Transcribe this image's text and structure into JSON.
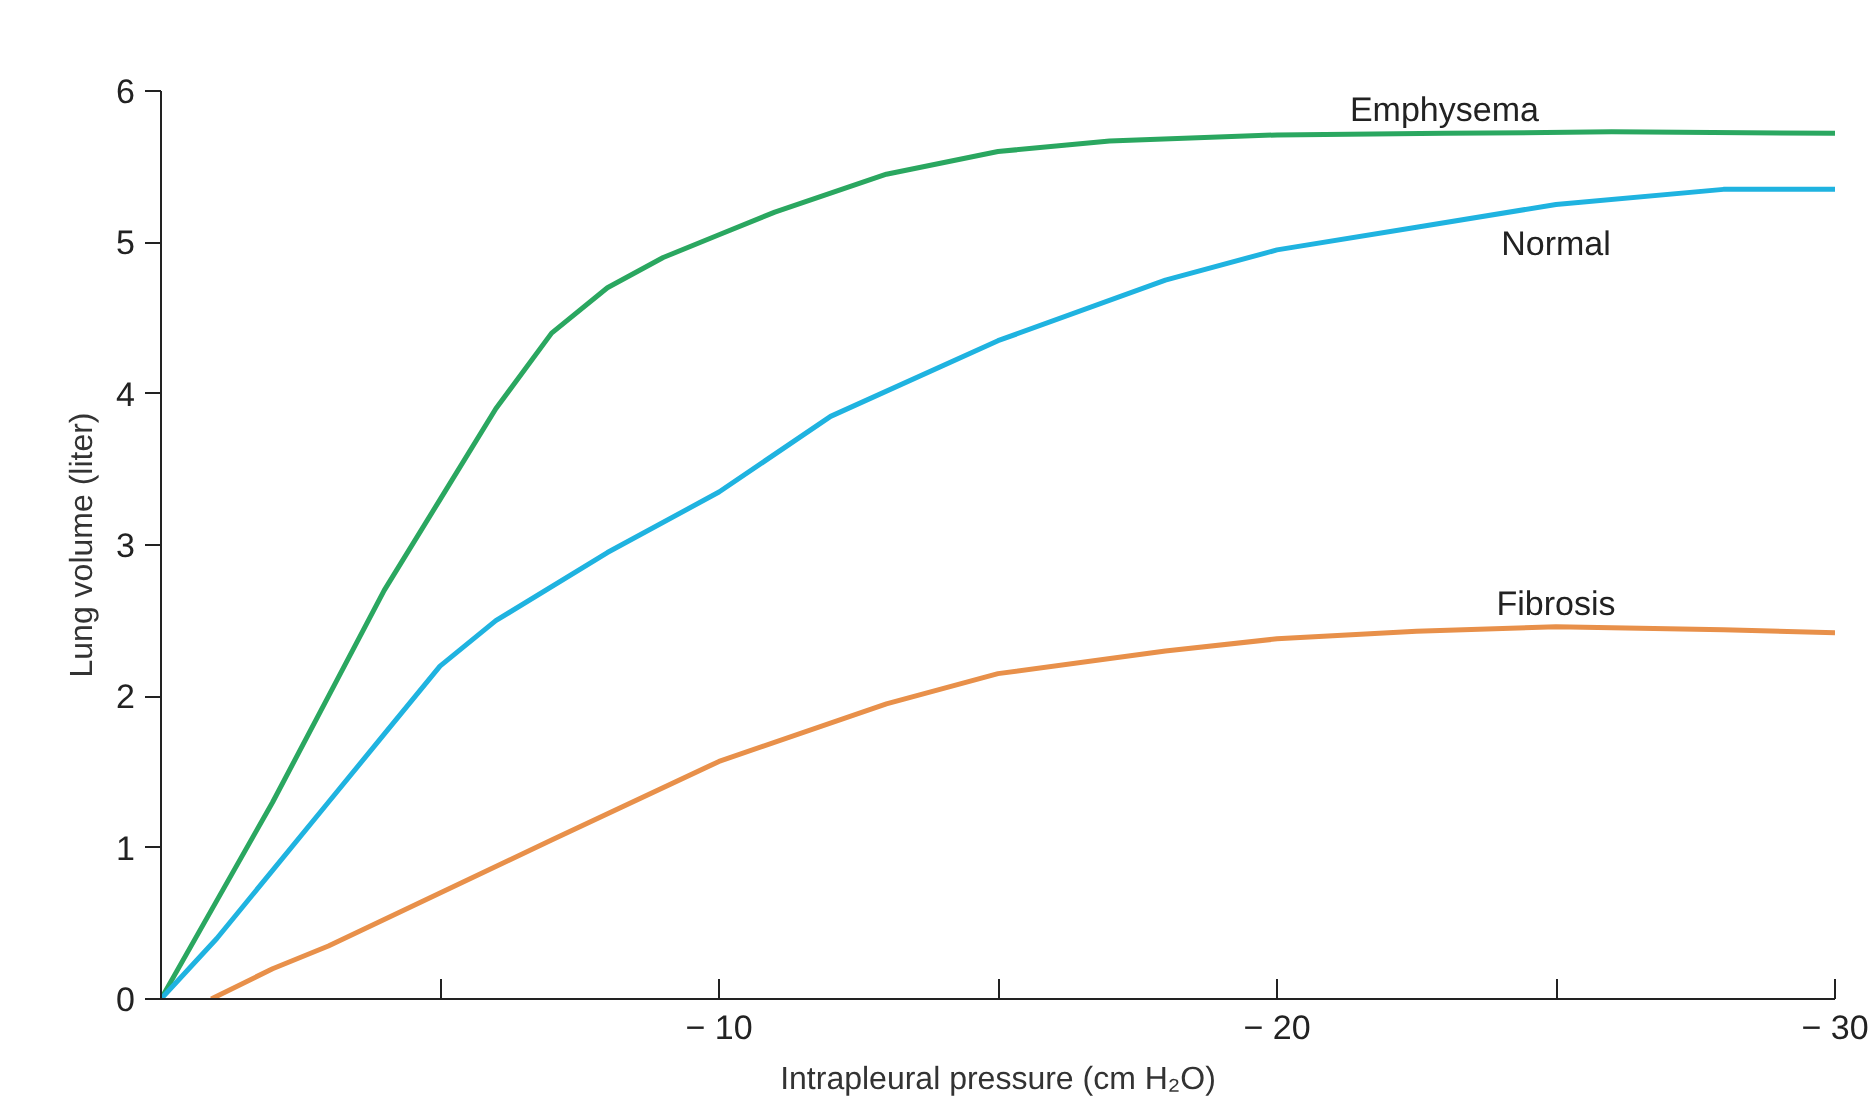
{
  "chart_data": {
    "type": "line",
    "xlabel": "Intrapleural pressure (cm H₂O)",
    "ylabel": "Lung volume (liter)",
    "xlim": [
      0,
      -30
    ],
    "ylim": [
      0,
      6
    ],
    "xticks": [
      {
        "value": 0,
        "label": null
      },
      {
        "value": -5,
        "label": null
      },
      {
        "value": -10,
        "label": "− 10"
      },
      {
        "value": -15,
        "label": null
      },
      {
        "value": -20,
        "label": "− 20"
      },
      {
        "value": -25,
        "label": null
      },
      {
        "value": -30,
        "label": "− 30"
      }
    ],
    "yticks": [
      {
        "value": 0,
        "label": "0"
      },
      1,
      2,
      3,
      4,
      5,
      6
    ],
    "grid": false,
    "marker": "none",
    "line_style": "solid",
    "series": [
      {
        "name": "Emphysema",
        "color": "#2aa760",
        "x": [
          0,
          -1,
          -2,
          -3,
          -4,
          -5,
          -6,
          -7,
          -8,
          -9,
          -10,
          -11,
          -13,
          -15,
          -17,
          -20,
          -23,
          -26,
          -30
        ],
        "values": [
          0,
          0.65,
          1.3,
          2.0,
          2.7,
          3.3,
          3.9,
          4.4,
          4.7,
          4.9,
          5.05,
          5.2,
          5.45,
          5.6,
          5.67,
          5.71,
          5.72,
          5.73,
          5.72
        ]
      },
      {
        "name": "Normal",
        "color": "#1fb3e0",
        "x": [
          0,
          -1,
          -2,
          -3,
          -4,
          -5,
          -6,
          -8,
          -10,
          -12,
          -15,
          -18,
          -20,
          -22.5,
          -25,
          -28,
          -30
        ],
        "values": [
          0,
          0.4,
          0.85,
          1.3,
          1.75,
          2.2,
          2.5,
          2.95,
          3.35,
          3.85,
          4.35,
          4.75,
          4.95,
          5.1,
          5.25,
          5.35,
          5.35
        ]
      },
      {
        "name": "Fibrosis",
        "color": "#e8904a",
        "x": [
          -0.9,
          -2,
          -3,
          -5,
          -7,
          -10,
          -13,
          -15,
          -18,
          -20,
          -22.5,
          -25,
          -28,
          -30
        ],
        "values": [
          0,
          0.2,
          0.35,
          0.7,
          1.05,
          1.57,
          1.95,
          2.15,
          2.3,
          2.38,
          2.43,
          2.46,
          2.44,
          2.42
        ]
      }
    ]
  }
}
